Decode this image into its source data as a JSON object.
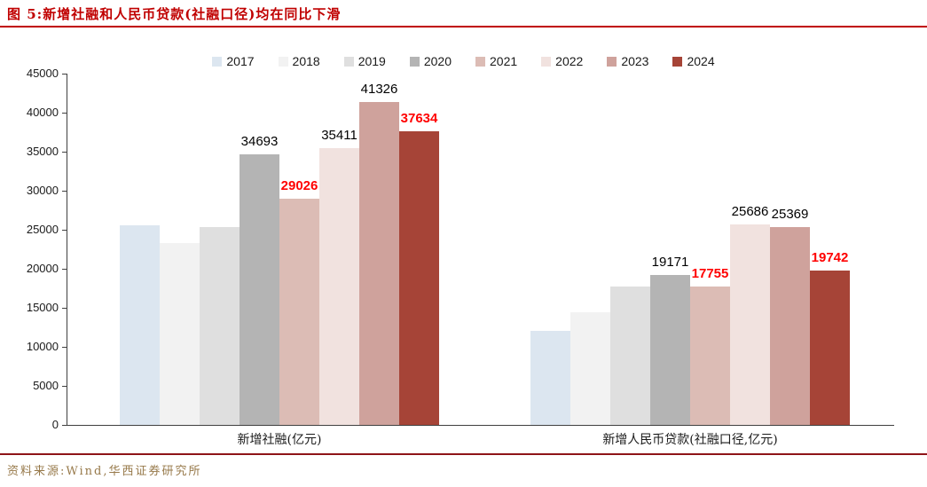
{
  "title": "图 5:新增社融和人民币贷款(社融口径)均在同比下滑",
  "source": "资料来源:Wind,华西证券研究所",
  "colors": {
    "title_red": "#c00000",
    "highlight_label_red": "#ff0000",
    "footer_rule_red": "#8e1418",
    "footer_text_brown": "#97794a",
    "axis": "#404040"
  },
  "chart_data": {
    "type": "bar",
    "title": "图 5:新增社融和人民币贷款(社融口径)均在同比下滑",
    "unit": "亿元",
    "ylim": [
      0,
      45000
    ],
    "ytick_step": 5000,
    "grid": false,
    "legend_position": "top",
    "groups": [
      "新增社融(亿元)",
      "新增人民币贷款(社融口径,亿元)"
    ],
    "series": [
      {
        "year": "2017",
        "color": "#dce6f0",
        "values": [
          25600,
          12000
        ],
        "labels": [
          null,
          null
        ],
        "label_colors": [
          null,
          null
        ]
      },
      {
        "year": "2018",
        "color": "#f2f2f2",
        "values": [
          23300,
          14400
        ],
        "labels": [
          null,
          null
        ],
        "label_colors": [
          null,
          null
        ]
      },
      {
        "year": "2019",
        "color": "#dfdfdf",
        "values": [
          25300,
          17700
        ],
        "labels": [
          null,
          null
        ],
        "label_colors": [
          null,
          null
        ]
      },
      {
        "year": "2020",
        "color": "#b4b4b4",
        "values": [
          34693,
          19171
        ],
        "labels": [
          "34693",
          "19171"
        ],
        "label_colors": [
          "#000000",
          "#000000"
        ]
      },
      {
        "year": "2021",
        "color": "#dcbcb5",
        "values": [
          29026,
          17755
        ],
        "labels": [
          "29026",
          "17755"
        ],
        "label_colors": [
          "#ff0000",
          "#ff0000"
        ]
      },
      {
        "year": "2022",
        "color": "#f1e2df",
        "values": [
          35411,
          25686
        ],
        "labels": [
          "35411",
          "25686"
        ],
        "label_colors": [
          "#000000",
          "#000000"
        ]
      },
      {
        "year": "2023",
        "color": "#cfa29c",
        "values": [
          41326,
          25369
        ],
        "labels": [
          "41326",
          "25369"
        ],
        "label_colors": [
          "#000000",
          "#000000"
        ]
      },
      {
        "year": "2024",
        "color": "#a64437",
        "values": [
          37634,
          19742
        ],
        "labels": [
          "37634",
          "19742"
        ],
        "label_colors": [
          "#ff0000",
          "#ff0000"
        ]
      }
    ]
  }
}
